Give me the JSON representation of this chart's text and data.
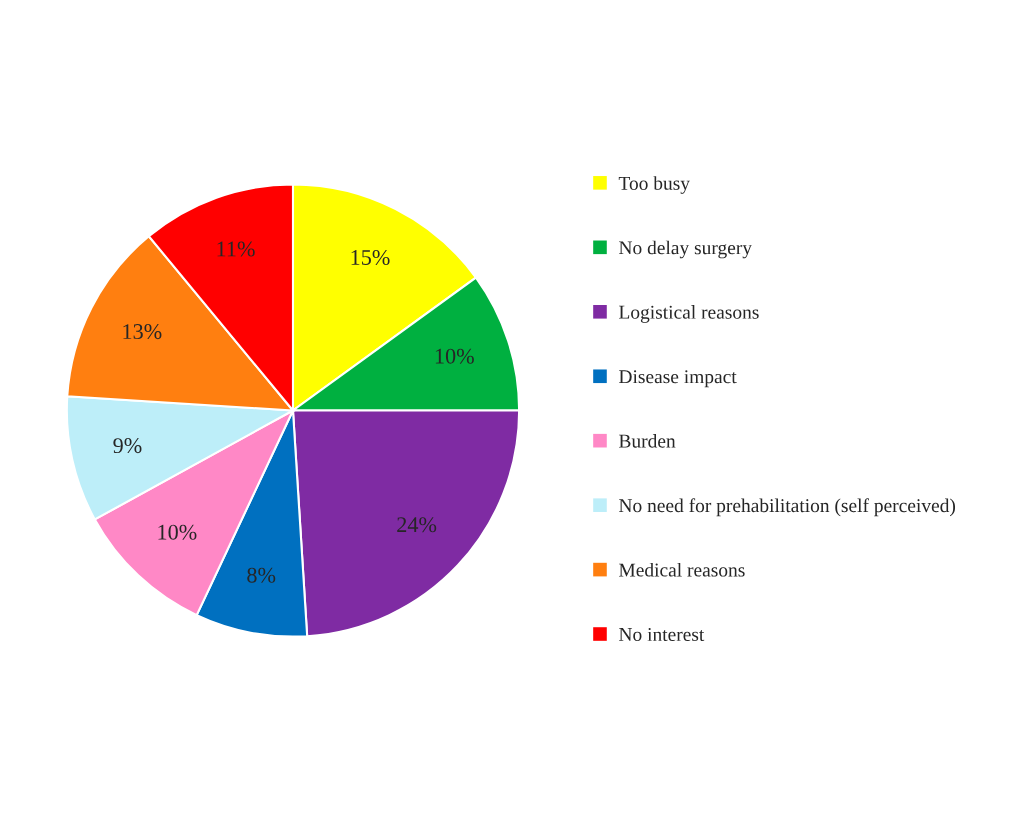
{
  "chart_data": {
    "type": "pie",
    "categories": [
      "Too busy",
      "No delay surgery",
      "Logistical reasons",
      "Disease impact",
      "Burden",
      "No need for prehabilitation (self perceived)",
      "Medical reasons",
      "No interest"
    ],
    "values": [
      15,
      10,
      24,
      8,
      10,
      9,
      13,
      11
    ],
    "colors": [
      "#ffff00",
      "#00b040",
      "#7f2ba3",
      "#0070c0",
      "#ff88c6",
      "#bdeef9",
      "#ff7f10",
      "#ff0000"
    ],
    "value_labels": [
      "15%",
      "10%",
      "24%",
      "8%",
      "10%",
      "9%",
      "13%",
      "11%"
    ],
    "legend": "right"
  }
}
